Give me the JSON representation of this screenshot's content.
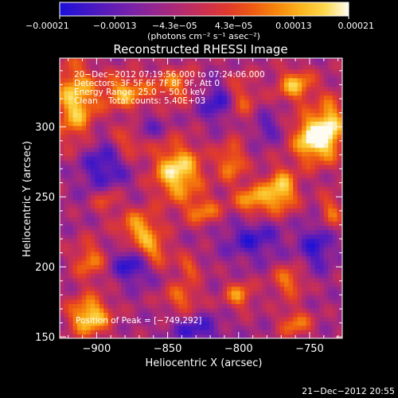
{
  "chart_data": {
    "type": "heatmap",
    "title": "Reconstructed RHESSI Image",
    "xlabel": "Heliocentric X (arcsec)",
    "ylabel": "Heliocentric Y (arcsec)",
    "xlim": [
      -926,
      -727
    ],
    "ylim": [
      149,
      349
    ],
    "x_ticks": [
      -900,
      -850,
      -800,
      -750
    ],
    "x_tick_labels": [
      "−900",
      "−850",
      "−800",
      "−750"
    ],
    "y_ticks": [
      150,
      200,
      250,
      300
    ],
    "y_tick_labels": [
      "150",
      "200",
      "250",
      "300"
    ],
    "colorbar": {
      "range": [
        -0.00021,
        0.00021
      ],
      "ticks": [
        -0.00021,
        -0.00013,
        -4.3e-05,
        4.3e-05,
        0.00013,
        0.00021
      ],
      "tick_labels": [
        "−0.00021",
        "−0.00013",
        "−4.3e−05",
        "4.3e−05",
        "0.00013",
        "0.00021"
      ],
      "units_label": "(photons cm⁻² s⁻¹ asec⁻²)",
      "colormap": [
        "#1a10d8",
        "#3c16c8",
        "#5c1cb8",
        "#7a22a6",
        "#96268e",
        "#b22a70",
        "#cc3050",
        "#e03a2c",
        "#ee5a12",
        "#f6860c",
        "#fab41e",
        "#fcd84c",
        "#fefcf0"
      ]
    },
    "annotations": [
      "20−Dec−2012 07:19:56.000 to 07:24:06.000",
      "Detectors: 3F 5F 6F 7F 8F 9F, Att 0",
      "Energy Range: 25.0 − 50.0 keV",
      "Clean    Total counts: 5.40E+03"
    ],
    "peak_label": "Position of Peak = [−749,292]",
    "peak_position": [
      -749,
      292
    ],
    "grid": false
  },
  "timestamp": "21−Dec−2012 20:55"
}
